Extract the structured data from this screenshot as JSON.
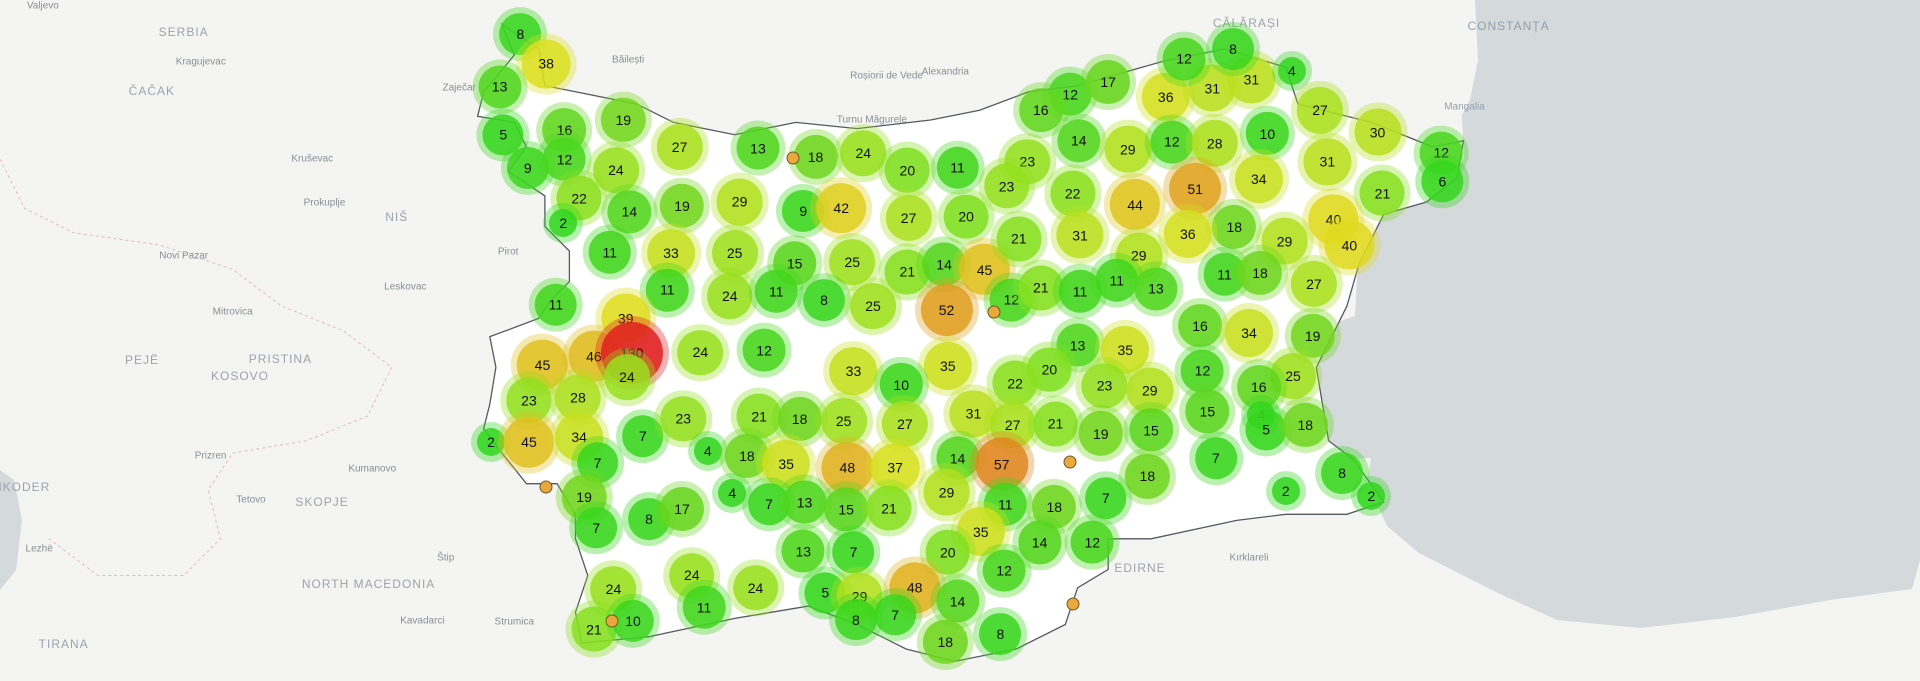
{
  "map": {
    "colors": {
      "land": "#f4f4f2",
      "sea": "#d4d9dc",
      "border": "#555a60",
      "marker": "#e8a93a"
    },
    "place_labels": [
      "Valjevo",
      "SERBIA",
      "Kragujevac",
      "ČAČAK",
      "Kruševac",
      "NIŠ",
      "Prokuplje",
      "Novi Pazar",
      "Pirot",
      "Leskovac",
      "Mitrovica",
      "PRISTINA",
      "PEJË",
      "KOSOVO",
      "Prizren",
      "Kumanovo",
      "Tetovo",
      "SKOPJE",
      "SHKODER",
      "Lezhë",
      "NORTH MACEDONIA",
      "Štip",
      "Strumica",
      "Kavadarci",
      "TIRANA",
      "Zaječar",
      "Băilești",
      "Roșiorii de Vede",
      "Alexandria",
      "Turnu Măgurele",
      "CĂLĂRAȘI",
      "CONSTANȚA",
      "Mangalia",
      "EDIRNE",
      "Kırklareli"
    ],
    "clusters": [
      8,
      38,
      13,
      5,
      16,
      19,
      9,
      12,
      24,
      27,
      13,
      18,
      24,
      20,
      11,
      23,
      12,
      17,
      16,
      36,
      31,
      31,
      4,
      12,
      8,
      27,
      30,
      10,
      14,
      29,
      12,
      28,
      12,
      6,
      31,
      34,
      51,
      21,
      22,
      14,
      2,
      19,
      29,
      9,
      42,
      27,
      20,
      23,
      22,
      44,
      18,
      36,
      40,
      40,
      29,
      11,
      33,
      25,
      15,
      25,
      21,
      14,
      45,
      21,
      31,
      29,
      11,
      18,
      27,
      11,
      24,
      11,
      8,
      25,
      52,
      12,
      21,
      11,
      11,
      13,
      11,
      39,
      16,
      34,
      19,
      45,
      46,
      130,
      24,
      24,
      12,
      33,
      35,
      13,
      35,
      20,
      22,
      10,
      23,
      29,
      12,
      25,
      16,
      23,
      28,
      15,
      4,
      5,
      18,
      2,
      45,
      34,
      7,
      23,
      21,
      18,
      25,
      27,
      31,
      27,
      21,
      19,
      15,
      7,
      4,
      18,
      35,
      48,
      37,
      14,
      57,
      18,
      7,
      8,
      2,
      2,
      19,
      4,
      7,
      13,
      15,
      21,
      29,
      11,
      18,
      7,
      7,
      8,
      17,
      35,
      14,
      12,
      13,
      7,
      20,
      12,
      24,
      24,
      24,
      5,
      29,
      48,
      14,
      11,
      8,
      7,
      18,
      8,
      21,
      10
    ],
    "single_markers": 6
  }
}
